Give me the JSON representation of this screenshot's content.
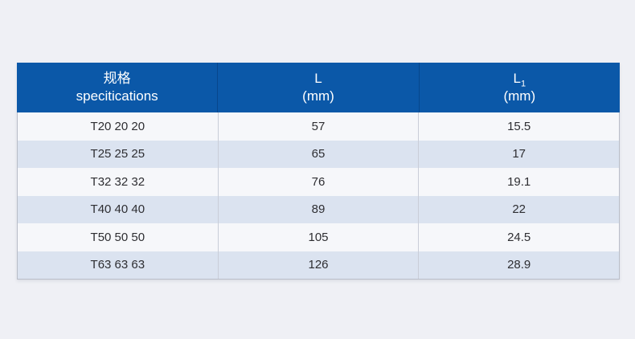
{
  "page": {
    "background_color": "#eff0f5"
  },
  "table": {
    "header": {
      "background_color": "#0b58a8",
      "text_color": "#ffffff",
      "col1": {
        "line1": "规格",
        "line2": "specitications"
      },
      "col2": {
        "line1": "L",
        "line2": "(mm)"
      },
      "col3": {
        "line1": "L",
        "sub": "1",
        "line2": "(mm)"
      }
    },
    "row_colors": {
      "odd": "#f6f7fa",
      "even": "#dbe3f0",
      "divider": "#c9cdd8",
      "outer_border": "#b9bdc8"
    },
    "rows": [
      [
        "T20 20 20",
        "57",
        "15.5"
      ],
      [
        "T25 25 25",
        "65",
        "17"
      ],
      [
        "T32 32 32",
        "76",
        "19.1"
      ],
      [
        "T40 40 40",
        "89",
        "22"
      ],
      [
        "T50 50 50",
        "105",
        "24.5"
      ],
      [
        "T63 63 63",
        "126",
        "28.9"
      ]
    ]
  },
  "chart_data": {
    "type": "table",
    "title": "",
    "columns": [
      "规格 specitications",
      "L (mm)",
      "L1 (mm)"
    ],
    "rows": [
      [
        "T20 20 20",
        57,
        15.5
      ],
      [
        "T25 25 25",
        65,
        17
      ],
      [
        "T32 32 32",
        76,
        19.1
      ],
      [
        "T40 40 40",
        89,
        22
      ],
      [
        "T50 50 50",
        105,
        24.5
      ],
      [
        "T63 63 63",
        126,
        28.9
      ]
    ],
    "layout": {
      "header_background": "#0b58a8",
      "alternating_rows": true,
      "text_alignment": "center"
    }
  }
}
